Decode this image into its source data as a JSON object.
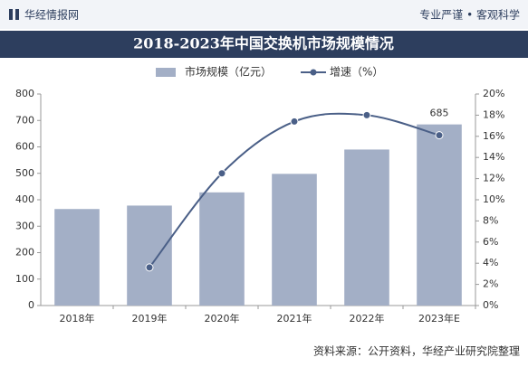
{
  "header": {
    "brand": "华经情报网",
    "slogan": "专业严谨 • 客观科学"
  },
  "chart_data": {
    "type": "bar",
    "title": "2018-2023年中国交换机市场规模情况",
    "categories": [
      "2018年",
      "2019年",
      "2020年",
      "2021年",
      "2022年",
      "2023年E"
    ],
    "series": [
      {
        "name": "市场规模（亿元）",
        "type": "bar",
        "color": "#a3afc6",
        "values": [
          365,
          378,
          428,
          498,
          590,
          685
        ],
        "value_labels": [
          null,
          null,
          null,
          null,
          null,
          "685"
        ]
      },
      {
        "name": "增速（%）",
        "type": "line",
        "axis": "y2",
        "color": "#4a5f87",
        "values": [
          null,
          3.6,
          12.5,
          17.4,
          18.0,
          16.1
        ]
      }
    ],
    "ylim": [
      0,
      800
    ],
    "yticks": [
      0,
      100,
      200,
      300,
      400,
      500,
      600,
      700,
      800
    ],
    "y2lim": [
      0,
      20
    ],
    "y2ticks": [
      {
        "value": 0,
        "label": "0%"
      },
      {
        "value": 2,
        "label": "2%"
      },
      {
        "value": 4,
        "label": "4%"
      },
      {
        "value": 6,
        "label": "6%"
      },
      {
        "value": 8,
        "label": "8%"
      },
      {
        "value": 10,
        "label": "10%"
      },
      {
        "value": 12,
        "label": "12%"
      },
      {
        "value": 14,
        "label": "14%"
      },
      {
        "value": 16,
        "label": "16%"
      },
      {
        "value": 18,
        "label": "18%"
      },
      {
        "value": 20,
        "label": "20%"
      }
    ],
    "grid": false,
    "source": "资料来源：公开资料，华经产业研究院整理"
  }
}
